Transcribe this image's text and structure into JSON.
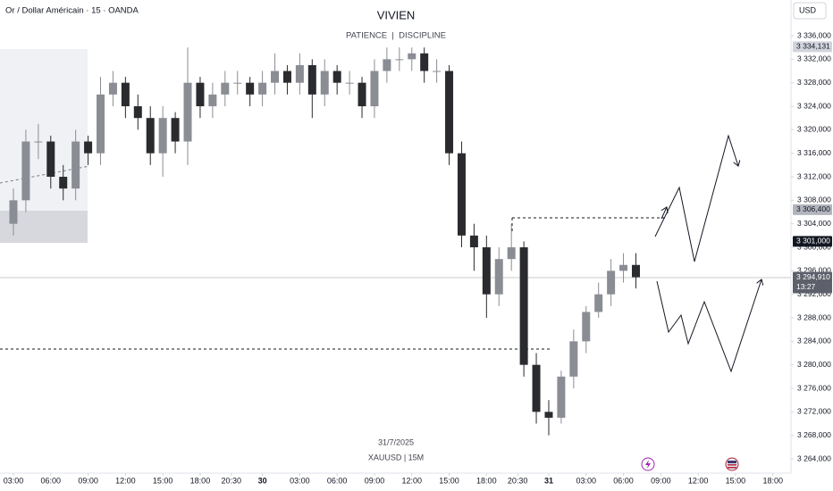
{
  "chart_data": {
    "type": "candlestick",
    "symbol_info": "Or / Dollar Américain · 15 · OANDA",
    "title": "VIVIEN",
    "subtitle": "PATIENCE  |  DISCIPLINE",
    "currency": "USD",
    "footer_date": "31/7/2025",
    "footer_symbol": "XAUUSD | 15M",
    "up_color": "#8a8d94",
    "down_color": "#2a2b2f",
    "x": [
      0,
      1,
      2,
      3,
      4,
      5,
      6,
      7,
      8,
      9,
      10,
      11,
      12,
      13,
      14,
      15,
      16,
      17,
      18,
      19,
      20,
      21,
      22,
      23,
      24,
      25,
      26,
      27,
      28,
      29,
      30,
      31,
      32,
      33,
      34,
      35,
      36,
      37,
      38,
      39,
      40,
      41,
      42,
      43,
      44,
      45,
      46,
      47,
      48,
      49,
      50
    ],
    "open": [
      3304,
      3308,
      3318,
      3318,
      3312,
      3310,
      3318,
      3316,
      3326,
      3328,
      3324,
      3322,
      3316,
      3322,
      3318,
      3328,
      3324,
      3326,
      3328,
      3328,
      3326,
      3328,
      3330,
      3328,
      3331,
      3326,
      3330,
      3328,
      3328,
      3324,
      3330,
      3332,
      3332,
      3333,
      3330,
      3330,
      3316,
      3302,
      3300,
      3292,
      3298,
      3300,
      3280,
      3272,
      3271,
      3278,
      3284,
      3289,
      3292,
      3296,
      3297
    ],
    "high": [
      3310,
      3320,
      3321,
      3319,
      3314,
      3320,
      3319,
      3329,
      3330,
      3329,
      3326,
      3324,
      3324,
      3323,
      3334,
      3329,
      3328,
      3330,
      3330,
      3329,
      3330,
      3333,
      3331,
      3333,
      3332,
      3332,
      3331,
      3330,
      3329,
      3332,
      3334,
      3334,
      3334,
      3334,
      3332,
      3331,
      3318,
      3304,
      3302,
      3300,
      3304,
      3301,
      3282,
      3274,
      3279,
      3286,
      3290,
      3294,
      3298,
      3299,
      3299
    ],
    "low": [
      3302,
      3306,
      3315,
      3310,
      3308,
      3308,
      3314,
      3314,
      3324,
      3322,
      3320,
      3314,
      3312,
      3316,
      3314,
      3322,
      3322,
      3324,
      3326,
      3324,
      3324,
      3326,
      3326,
      3326,
      3322,
      3324,
      3326,
      3326,
      3322,
      3322,
      3328,
      3330,
      3330,
      3328,
      3328,
      3314,
      3300,
      3296,
      3288,
      3290,
      3296,
      3278,
      3270,
      3268,
      3270,
      3276,
      3282,
      3288,
      3290,
      3294,
      3293
    ],
    "close": [
      3308,
      3318,
      3318,
      3312,
      3310,
      3318,
      3316,
      3326,
      3328,
      3324,
      3322,
      3316,
      3322,
      3318,
      3328,
      3324,
      3326,
      3328,
      3328,
      3326,
      3328,
      3330,
      3328,
      3331,
      3326,
      3330,
      3328,
      3328,
      3324,
      3330,
      3332,
      3332,
      3333,
      3330,
      3330,
      3316,
      3302,
      3300,
      3292,
      3298,
      3300,
      3280,
      3272,
      3271,
      3278,
      3284,
      3289,
      3292,
      3296,
      3297,
      3294.91
    ],
    "xlim": [
      -1.077,
      62.457
    ],
    "ylim": [
      3261.57,
      3342.08
    ],
    "xticks": [
      {
        "value": 0,
        "label": "03:00"
      },
      {
        "value": 3,
        "label": "06:00"
      },
      {
        "value": 6,
        "label": "09:00"
      },
      {
        "value": 9,
        "label": "12:00"
      },
      {
        "value": 12,
        "label": "15:00"
      },
      {
        "value": 15,
        "label": "18:00"
      },
      {
        "value": 17.5,
        "label": "20:30"
      },
      {
        "value": 20,
        "label": "30"
      },
      {
        "value": 23,
        "label": "03:00"
      },
      {
        "value": 26,
        "label": "06:00"
      },
      {
        "value": 29,
        "label": "09:00"
      },
      {
        "value": 32,
        "label": "12:00"
      },
      {
        "value": 35,
        "label": "15:00"
      },
      {
        "value": 38,
        "label": "18:00"
      },
      {
        "value": 40.5,
        "label": "20:30"
      },
      {
        "value": 43,
        "label": "31"
      },
      {
        "value": 46,
        "label": "03:00"
      },
      {
        "value": 49,
        "label": "06:00"
      },
      {
        "value": 52,
        "label": "09:00"
      },
      {
        "value": 55,
        "label": "12:00"
      },
      {
        "value": 58,
        "label": "15:00"
      },
      {
        "value": 61,
        "label": "18:00"
      }
    ],
    "yticks": [
      {
        "value": 3336,
        "label": "3 336,000"
      },
      {
        "value": 3332,
        "label": "3 332,000"
      },
      {
        "value": 3328,
        "label": "3 328,000"
      },
      {
        "value": 3324,
        "label": "3 324,000"
      },
      {
        "value": 3320,
        "label": "3 320,000"
      },
      {
        "value": 3316,
        "label": "3 316,000"
      },
      {
        "value": 3312,
        "label": "3 312,000"
      },
      {
        "value": 3308,
        "label": "3 308,000"
      },
      {
        "value": 3304,
        "label": "3 304,000"
      },
      {
        "value": 3300,
        "label": "3 300,000"
      },
      {
        "value": 3296,
        "label": "3 296,000"
      },
      {
        "value": 3292,
        "label": "3 292,000"
      },
      {
        "value": 3288,
        "label": "3 288,000"
      },
      {
        "value": 3284,
        "label": "3 284,000"
      },
      {
        "value": 3280,
        "label": "3 280,000"
      },
      {
        "value": 3276,
        "label": "3 276,000"
      },
      {
        "value": 3272,
        "label": "3 272,000"
      },
      {
        "value": 3268,
        "label": "3 268,000"
      },
      {
        "value": 3264,
        "label": "3 264,000"
      }
    ],
    "grid": false,
    "price_labels": [
      {
        "value": 3334.131,
        "label": "3 334,131",
        "color": "#d1d4dc",
        "text_color": "#131722"
      },
      {
        "value": 3306.4,
        "label": "3 306,400",
        "color": "#b2b5be",
        "text_color": "#131722"
      },
      {
        "value": 3301,
        "label": "3 301,000",
        "color": "#131722",
        "text_color": "#ffffff"
      },
      {
        "value": 3294.91,
        "label": "3 294,910",
        "color": "#5d606b",
        "text_color": "#ffffff"
      }
    ],
    "countdown": "13:27"
  }
}
